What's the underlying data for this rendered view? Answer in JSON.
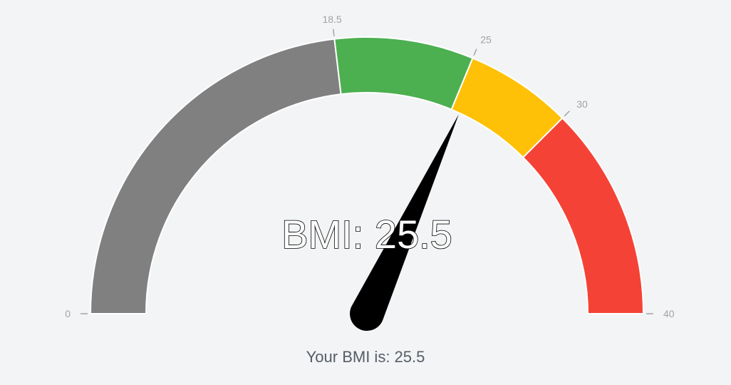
{
  "chart_data": {
    "type": "gauge",
    "min": 0,
    "max": 40,
    "value": 25.5,
    "center_label": "BMI: 25.5",
    "segments": [
      {
        "from": 0,
        "to": 18.5,
        "color": "#808080"
      },
      {
        "from": 18.5,
        "to": 25,
        "color": "#4caf50"
      },
      {
        "from": 25,
        "to": 30,
        "color": "#ffc107"
      },
      {
        "from": 30,
        "to": 40,
        "color": "#f44336"
      }
    ],
    "ticks": [
      {
        "value": 0,
        "label": "0"
      },
      {
        "value": 18.5,
        "label": "18.5"
      },
      {
        "value": 25,
        "label": "25"
      },
      {
        "value": 30,
        "label": "30"
      },
      {
        "value": 40,
        "label": "40"
      }
    ],
    "needle_color": "#000000",
    "tick_color": "#a3a3a3"
  },
  "caption": "Your BMI is: 25.5"
}
